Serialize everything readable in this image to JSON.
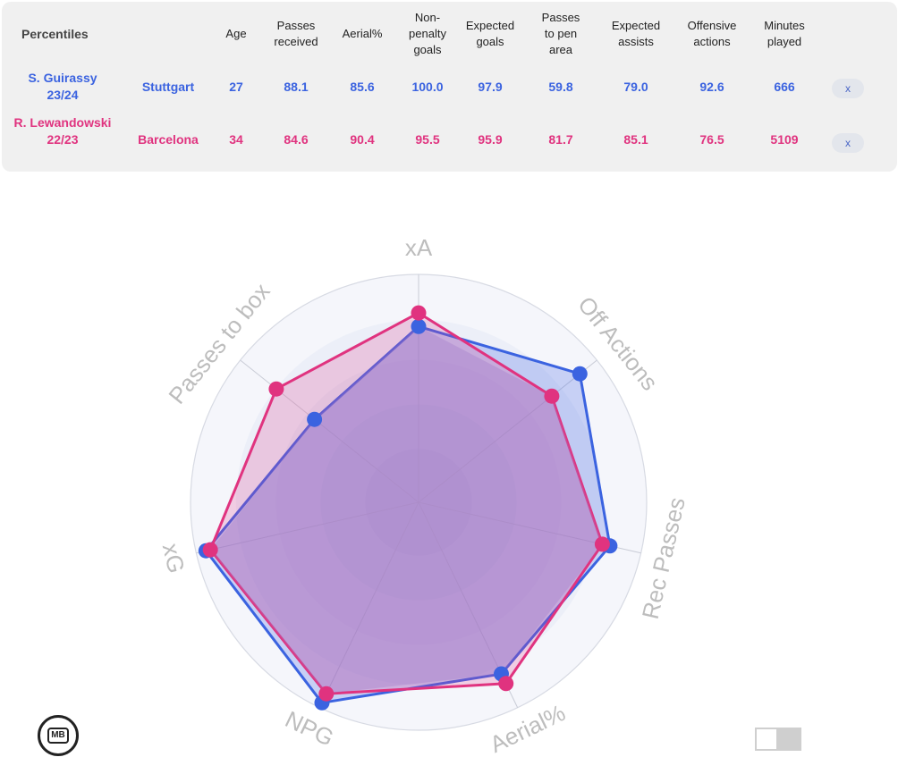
{
  "table": {
    "headers": {
      "title": "Percentiles",
      "age": "Age",
      "passes_received": "Passes received",
      "aerial": "Aerial%",
      "npg": "Non-penalty goals",
      "xg": "Expected goals",
      "pass_pen": "Passes to pen area",
      "xa": "Expected assists",
      "off_actions": "Offensive actions",
      "minutes": "Minutes played"
    },
    "rows": [
      {
        "player": "S. Guirassy 23/24",
        "team": "Stuttgart",
        "age": "27",
        "passes_received": "88.1",
        "aerial": "85.6",
        "npg": "100.0",
        "xg": "97.9",
        "pass_pen": "59.8",
        "xa": "79.0",
        "off_actions": "92.6",
        "minutes": "666",
        "remove": "x"
      },
      {
        "player": "R. Lewandowski 22/23",
        "team": "Barcelona",
        "age": "34",
        "passes_received": "84.6",
        "aerial": "90.4",
        "npg": "95.5",
        "xg": "95.9",
        "pass_pen": "81.7",
        "xa": "85.1",
        "off_actions": "76.5",
        "minutes": "5109",
        "remove": "x"
      }
    ]
  },
  "chart_data": {
    "type": "radar",
    "axes": [
      "xA",
      "Off Actions",
      "Rec Passes",
      "Aerial%",
      "NPG",
      "xG",
      "Passes to box"
    ],
    "range": [
      0,
      100
    ],
    "series": [
      {
        "name": "S. Guirassy 23/24",
        "values": [
          79.0,
          92.6,
          88.1,
          85.6,
          100.0,
          97.9,
          59.8
        ],
        "color": "#3b63e0"
      },
      {
        "name": "R. Lewandowski 22/23",
        "values": [
          85.1,
          76.5,
          84.6,
          90.4,
          95.5,
          95.9,
          81.7
        ],
        "color": "#e0337f"
      }
    ]
  },
  "colors": {
    "player1": "#3b63e0",
    "player2": "#e0337f",
    "axis_label": "#bdbdbd"
  },
  "icons": {
    "logo": "mb-logo-icon",
    "toggle": "toggle-switch"
  },
  "logo_text": "MB"
}
